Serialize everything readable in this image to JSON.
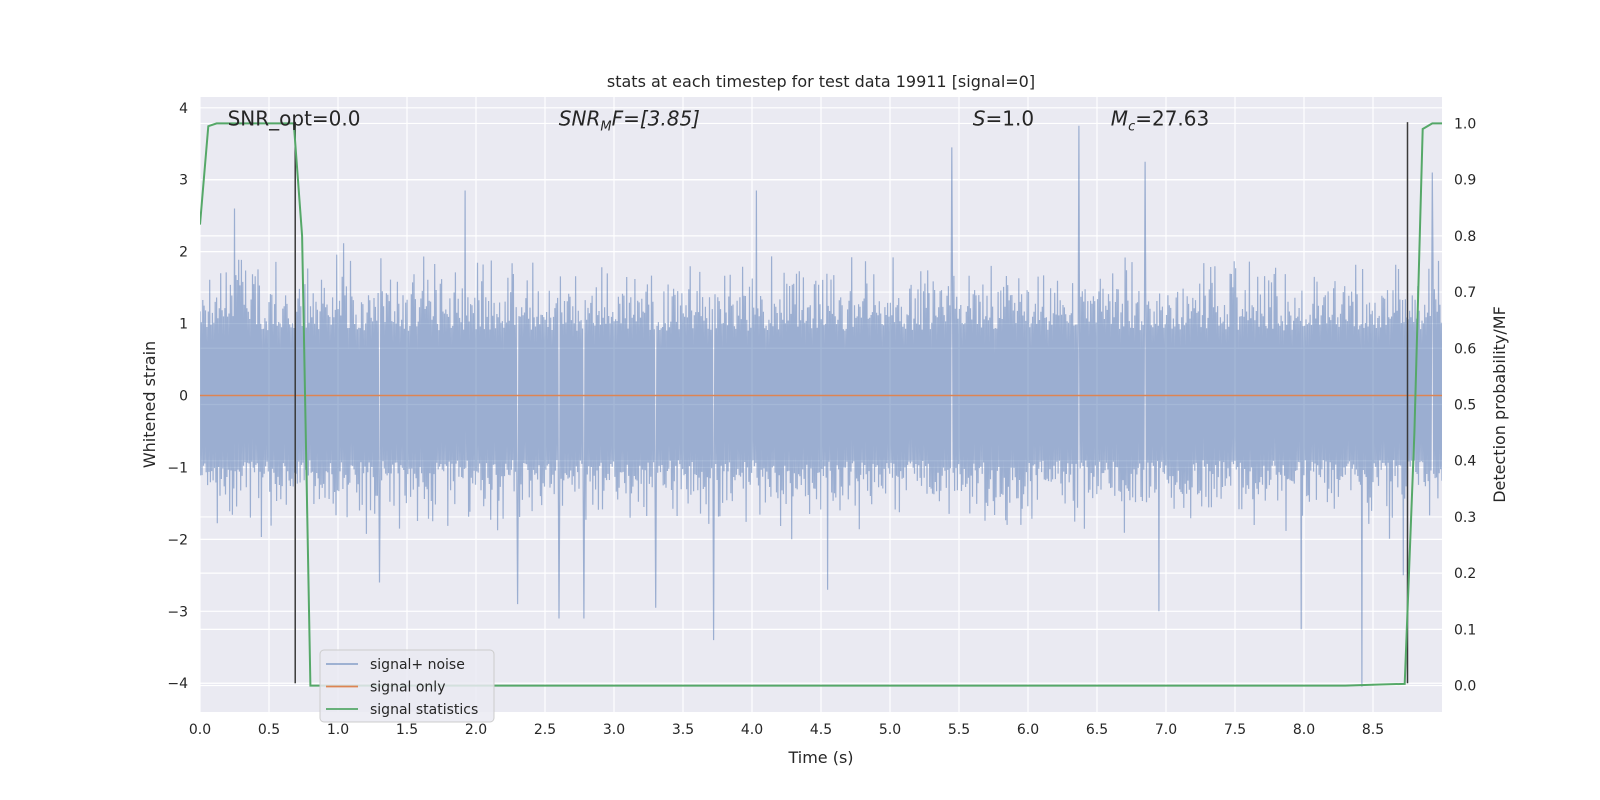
{
  "chart_data": {
    "type": "line",
    "title": "stats at each timestep for test data 19911 [signal=0]",
    "xlabel": "Time (s)",
    "ylabel": "Whitened strain",
    "y2label": "Detection probability/MF",
    "xlim": [
      0.0,
      9.0
    ],
    "ylim": [
      -4.4,
      4.15
    ],
    "y2lim": [
      -0.047,
      1.047
    ],
    "x_ticks": [
      0.0,
      0.5,
      1.0,
      1.5,
      2.0,
      2.5,
      3.0,
      3.5,
      4.0,
      4.5,
      5.0,
      5.5,
      6.0,
      6.5,
      7.0,
      7.5,
      8.0,
      8.5
    ],
    "x_tick_labels": [
      "0.0",
      "0.5",
      "1.0",
      "1.5",
      "2.0",
      "2.5",
      "3.0",
      "3.5",
      "4.0",
      "4.5",
      "5.0",
      "5.5",
      "6.0",
      "6.5",
      "7.0",
      "7.5",
      "8.0",
      "8.5"
    ],
    "y_ticks": [
      4,
      3,
      2,
      1,
      0,
      -1,
      -2,
      -3,
      -4
    ],
    "y_tick_labels": [
      "4",
      "3",
      "2",
      "1",
      "0",
      "−1",
      "−2",
      "−3",
      "−4"
    ],
    "y2_ticks": [
      1.0,
      0.9,
      0.8,
      0.7,
      0.6,
      0.5,
      0.4,
      0.3,
      0.2,
      0.1,
      0.0
    ],
    "y2_tick_labels": [
      "1.0",
      "0.9",
      "0.8",
      "0.7",
      "0.6",
      "0.5",
      "0.4",
      "0.3",
      "0.2",
      "0.1",
      "0.0"
    ],
    "annotations": [
      {
        "id": "snr-opt",
        "text": "SNR_opt=0.0",
        "x": 0.2
      },
      {
        "id": "snr-mf",
        "prefix": "SNR",
        "sub": "M",
        "suffix": "F=[3.85]",
        "x": 2.6
      },
      {
        "id": "s-stat",
        "prefix": "S",
        "suffix": "=1.0",
        "x": 5.6
      },
      {
        "id": "mc",
        "prefix": "M",
        "sub": "c",
        "suffix": "=27.63",
        "x": 6.6
      }
    ],
    "annotation_y": 3.85,
    "series": [
      {
        "name": "signal+ noise",
        "color": "#4c72b0",
        "axis": "left",
        "noise_seed": 19911,
        "n_samples": 1800,
        "envelope": 1.55,
        "spikes": [
          {
            "x": 0.25,
            "y": 2.6
          },
          {
            "x": 1.3,
            "y": -2.6
          },
          {
            "x": 1.92,
            "y": 2.85
          },
          {
            "x": 2.3,
            "y": -2.9
          },
          {
            "x": 2.6,
            "y": -3.1
          },
          {
            "x": 2.78,
            "y": -3.1
          },
          {
            "x": 3.3,
            "y": -2.95
          },
          {
            "x": 3.72,
            "y": -3.4
          },
          {
            "x": 4.03,
            "y": 2.85
          },
          {
            "x": 4.55,
            "y": -2.7
          },
          {
            "x": 5.45,
            "y": 3.45
          },
          {
            "x": 6.37,
            "y": 3.75
          },
          {
            "x": 6.85,
            "y": 3.25
          },
          {
            "x": 6.95,
            "y": -3.0
          },
          {
            "x": 7.98,
            "y": -3.25
          },
          {
            "x": 8.42,
            "y": -4.05
          },
          {
            "x": 8.72,
            "y": -2.5
          },
          {
            "x": 8.93,
            "y": 3.1
          }
        ]
      },
      {
        "name": "signal only",
        "color": "#dd8452",
        "axis": "left",
        "x": [
          0.0,
          9.0
        ],
        "y": [
          0.0,
          0.0
        ]
      },
      {
        "name": "signal statistics",
        "color": "#55a868",
        "axis": "right",
        "x": [
          0.0,
          0.06,
          0.12,
          0.68,
          0.74,
          0.8,
          8.3,
          8.55,
          8.73,
          8.8,
          8.86,
          8.93,
          9.0
        ],
        "y": [
          0.82,
          0.995,
          1.0,
          1.0,
          0.8,
          0.0,
          0.0,
          0.002,
          0.003,
          0.45,
          0.99,
          1.0,
          1.0
        ]
      }
    ],
    "vlines": [
      {
        "x": 0.69,
        "y_from": -4.0,
        "y_to": 3.8,
        "color": "#3a3a3a"
      },
      {
        "x": 8.75,
        "y_from": -4.0,
        "y_to": 3.8,
        "color": "#3a3a3a"
      }
    ],
    "legend": {
      "position": "lower-left",
      "entries": [
        {
          "label": "signal+ noise",
          "color": "#4c72b0"
        },
        {
          "label": "signal only",
          "color": "#dd8452"
        },
        {
          "label": "signal statistics",
          "color": "#55a868"
        }
      ]
    },
    "grid": true,
    "style": {
      "background": "#eaeaf2",
      "grid_color": "#ffffff"
    }
  }
}
